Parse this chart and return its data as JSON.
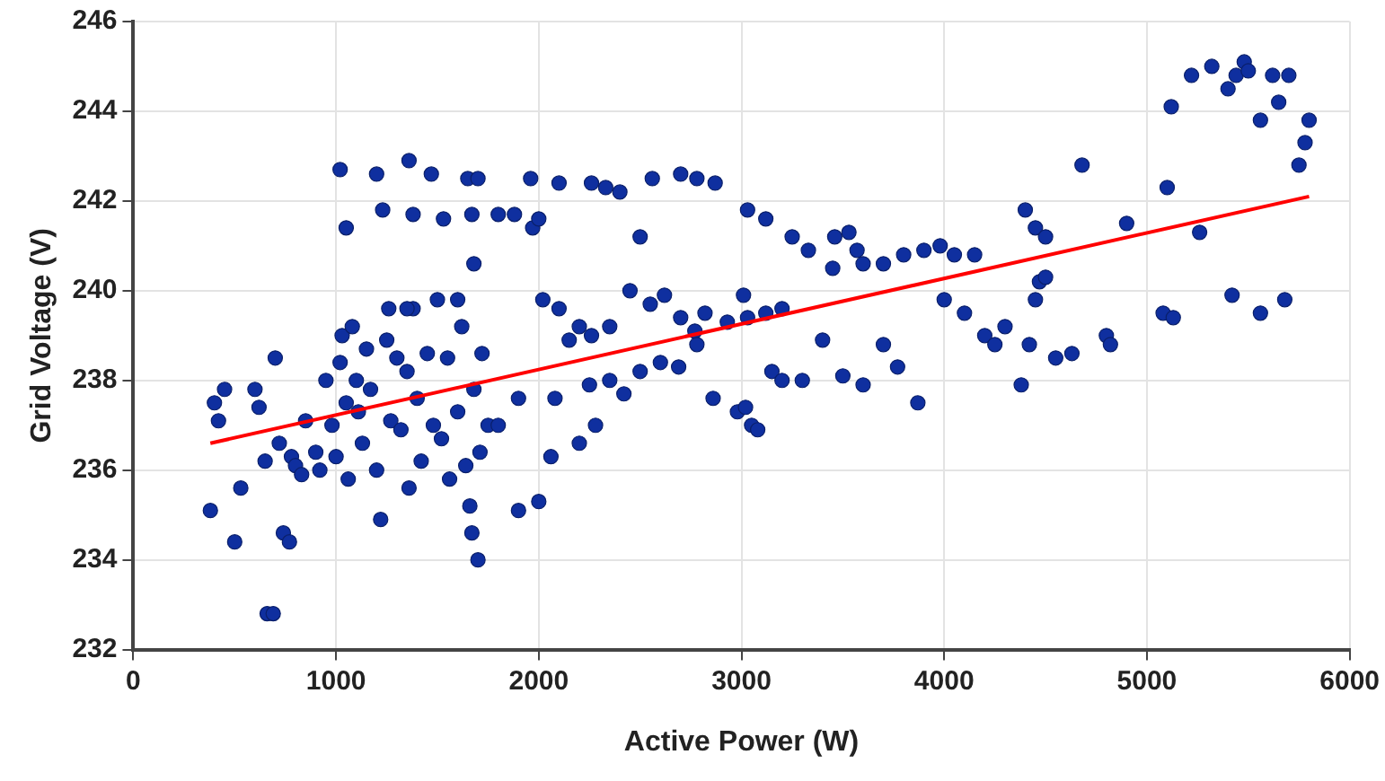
{
  "chart_data": {
    "type": "scatter",
    "xlabel": "Active Power (W)",
    "ylabel": "Grid Voltage (V)",
    "xlim": [
      0,
      6000
    ],
    "xticks": [
      0,
      1000,
      2000,
      3000,
      4000,
      5000,
      6000
    ],
    "ylim": [
      232,
      246
    ],
    "yticks": [
      232,
      234,
      236,
      238,
      240,
      242,
      244,
      246
    ],
    "grid": true,
    "legend": false,
    "marker": "circle",
    "series": [
      {
        "color": "#0f2f9f",
        "x": [
          380,
          400,
          420,
          450,
          500,
          530,
          600,
          620,
          650,
          660,
          690,
          700,
          720,
          740,
          770,
          780,
          800,
          830,
          850,
          900,
          920,
          950,
          980,
          1000,
          1020,
          1030,
          1050,
          1060,
          1080,
          1100,
          1110,
          1130,
          1150,
          1170,
          1200,
          1220,
          1250,
          1270,
          1300,
          1320,
          1350,
          1360,
          1380,
          1400,
          1420,
          1450,
          1480,
          1500,
          1520,
          1550,
          1560,
          1600,
          1620,
          1640,
          1660,
          1670,
          1680,
          1700,
          1710,
          1720,
          1750,
          1680,
          1600,
          1350,
          1260,
          1020,
          1050,
          1200,
          1230,
          1360,
          1380,
          1470,
          1530,
          1650,
          1670,
          1700,
          1800,
          1880,
          1960,
          1970,
          2000,
          2100,
          2260,
          2330,
          2400,
          2500,
          2560,
          2700,
          2780,
          2870,
          3030,
          3120,
          3250,
          3330,
          3460,
          3530,
          3570,
          3450,
          3600,
          3700,
          3800,
          3900,
          3980,
          4050,
          4150,
          4400,
          4450,
          4500,
          4680,
          4900,
          5100,
          5120,
          5220,
          5320,
          5400,
          5480,
          5440,
          5500,
          5560,
          5620,
          5650,
          5700,
          5750,
          5800,
          5780,
          5260,
          2020,
          2100,
          2200,
          2260,
          2350,
          2450,
          2550,
          2620,
          2700,
          2770,
          2820,
          2930,
          3010,
          3030,
          3120,
          3200,
          2150,
          2250,
          2350,
          2420,
          2500,
          2600,
          2690,
          2780,
          2860,
          2980,
          3020,
          3050,
          3080,
          3150,
          3200,
          3300,
          2080,
          1900,
          1800,
          1900,
          2000,
          2060,
          2200,
          2280,
          3600,
          3700,
          3770,
          3870,
          4000,
          4100,
          4200,
          4250,
          4300,
          4380,
          4450,
          4470,
          4500,
          4420,
          4550,
          4630,
          4800,
          4820,
          5080,
          5130,
          5420,
          5560,
          5680,
          3400,
          3500
        ],
        "values": [
          235.1,
          237.5,
          237.1,
          237.8,
          234.4,
          235.6,
          237.8,
          237.4,
          236.2,
          232.8,
          232.8,
          238.5,
          236.6,
          234.6,
          234.4,
          236.3,
          236.1,
          235.9,
          237.1,
          236.4,
          236.0,
          238.0,
          237.0,
          236.3,
          238.4,
          239.0,
          237.5,
          235.8,
          239.2,
          238.0,
          237.3,
          236.6,
          238.7,
          237.8,
          236.0,
          234.9,
          238.9,
          237.1,
          238.5,
          236.9,
          238.2,
          235.6,
          239.6,
          237.6,
          236.2,
          238.6,
          237.0,
          239.8,
          236.7,
          238.5,
          235.8,
          237.3,
          239.2,
          236.1,
          235.2,
          234.6,
          237.8,
          234.0,
          236.4,
          238.6,
          237.0,
          240.6,
          239.8,
          239.6,
          239.6,
          242.7,
          241.4,
          242.6,
          241.8,
          242.9,
          241.7,
          242.6,
          241.6,
          242.5,
          241.7,
          242.5,
          241.7,
          241.7,
          242.5,
          241.4,
          241.6,
          242.4,
          242.4,
          242.3,
          242.2,
          241.2,
          242.5,
          242.6,
          242.5,
          242.4,
          241.8,
          241.6,
          241.2,
          240.9,
          241.2,
          241.3,
          240.9,
          240.5,
          240.6,
          240.6,
          240.8,
          240.9,
          241.0,
          240.8,
          240.8,
          241.8,
          241.4,
          241.2,
          242.8,
          241.5,
          242.3,
          244.1,
          244.8,
          245.0,
          244.5,
          245.1,
          244.8,
          244.9,
          243.8,
          244.8,
          244.2,
          244.8,
          242.8,
          243.8,
          243.3,
          241.3,
          239.8,
          239.6,
          239.2,
          239.0,
          239.2,
          240.0,
          239.7,
          239.9,
          239.4,
          239.1,
          239.5,
          239.3,
          239.9,
          239.4,
          239.5,
          239.6,
          238.9,
          237.9,
          238.0,
          237.7,
          238.2,
          238.4,
          238.3,
          238.8,
          237.6,
          237.3,
          237.4,
          237.0,
          236.9,
          238.2,
          238.0,
          238.0,
          237.6,
          237.6,
          237.0,
          235.1,
          235.3,
          236.3,
          236.6,
          237.0,
          237.9,
          238.8,
          238.3,
          237.5,
          239.8,
          239.5,
          239.0,
          238.8,
          239.2,
          237.9,
          239.8,
          240.2,
          240.3,
          238.8,
          238.5,
          238.6,
          239.0,
          238.8,
          239.5,
          239.4,
          239.9,
          239.5,
          239.8,
          238.9,
          238.1
        ]
      },
      {
        "type": "line",
        "color": "#ff0000",
        "marker": "none",
        "line_style": "solid",
        "x": [
          380,
          5800
        ],
        "values": [
          236.6,
          242.1
        ]
      }
    ]
  }
}
